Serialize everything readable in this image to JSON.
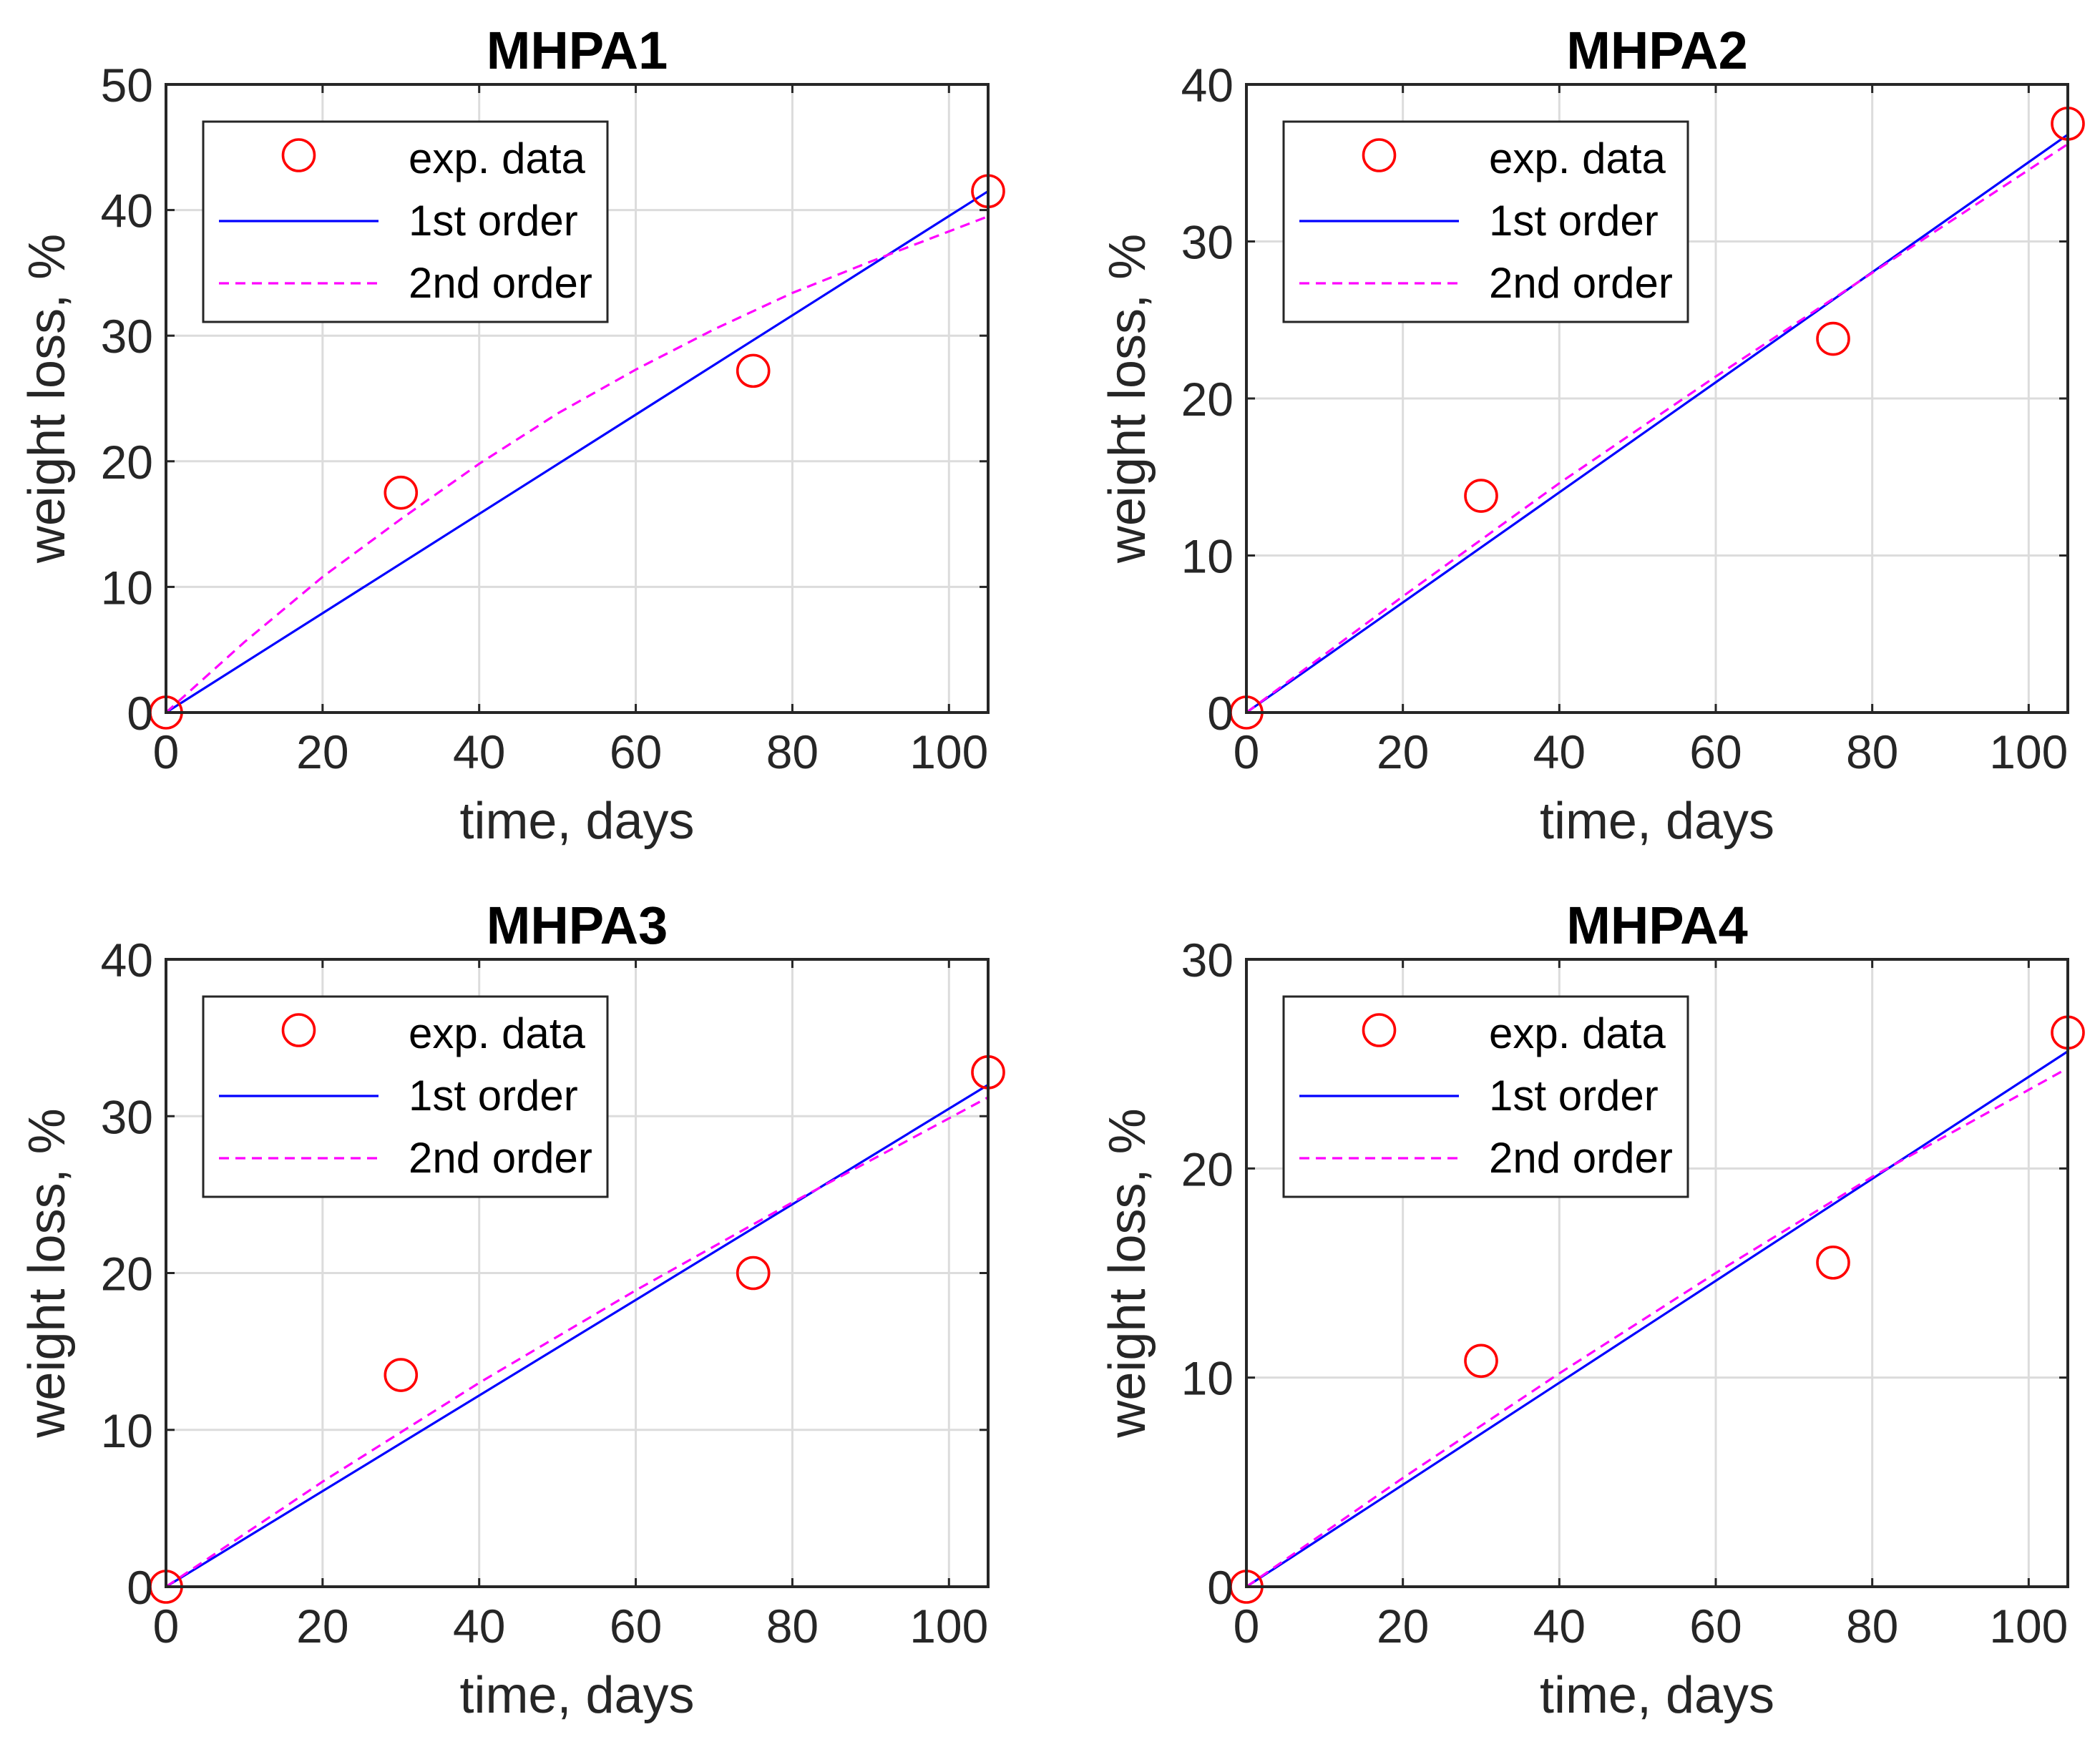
{
  "chart_data": [
    {
      "type": "line",
      "title": "MHPA1",
      "xlabel": "time, days",
      "ylabel": "weight loss, %",
      "xlim": [
        0,
        105
      ],
      "ylim": [
        0,
        50
      ],
      "xticks": [
        0,
        20,
        40,
        60,
        80,
        100
      ],
      "yticks": [
        0,
        10,
        20,
        30,
        40,
        50
      ],
      "grid": true,
      "legend_position": "top-left",
      "series": [
        {
          "name": "exp. data",
          "kind": "markers",
          "marker": "circle",
          "color": "#ff0000",
          "x": [
            0,
            30,
            75,
            105
          ],
          "y": [
            0,
            17.5,
            27.2,
            41.5
          ]
        },
        {
          "name": "1st order",
          "kind": "line",
          "style": "solid",
          "color": "#0000ff",
          "x": [
            0,
            105
          ],
          "y": [
            0,
            41.5
          ]
        },
        {
          "name": "2nd order",
          "kind": "line",
          "style": "dashed",
          "color": "#ff00ff",
          "x": [
            0,
            10,
            20,
            30,
            40,
            50,
            60,
            70,
            80,
            90,
            105
          ],
          "y": [
            0,
            5.6,
            10.8,
            15.4,
            19.8,
            23.8,
            27.3,
            30.5,
            33.4,
            35.9,
            39.5
          ]
        }
      ]
    },
    {
      "type": "line",
      "title": "MHPA2",
      "xlabel": "time, days",
      "ylabel": "weight loss, %",
      "xlim": [
        0,
        105
      ],
      "ylim": [
        0,
        40
      ],
      "xticks": [
        0,
        20,
        40,
        60,
        80,
        100
      ],
      "yticks": [
        0,
        10,
        20,
        30,
        40
      ],
      "grid": true,
      "legend_position": "top-left",
      "series": [
        {
          "name": "exp. data",
          "kind": "markers",
          "marker": "circle",
          "color": "#ff0000",
          "x": [
            0,
            30,
            75,
            105
          ],
          "y": [
            0,
            13.8,
            23.8,
            37.5
          ]
        },
        {
          "name": "1st order",
          "kind": "line",
          "style": "solid",
          "color": "#0000ff",
          "x": [
            0,
            105
          ],
          "y": [
            0,
            36.8
          ]
        },
        {
          "name": "2nd order",
          "kind": "line",
          "style": "dashed",
          "color": "#ff00ff",
          "x": [
            0,
            20,
            40,
            60,
            80,
            105
          ],
          "y": [
            0,
            7.4,
            14.6,
            21.4,
            28.0,
            36.2
          ]
        }
      ]
    },
    {
      "type": "line",
      "title": "MHPA3",
      "xlabel": "time, days",
      "ylabel": "weight loss, %",
      "xlim": [
        0,
        105
      ],
      "ylim": [
        0,
        40
      ],
      "xticks": [
        0,
        20,
        40,
        60,
        80,
        100
      ],
      "yticks": [
        0,
        10,
        20,
        30,
        40
      ],
      "grid": true,
      "legend_position": "top-left",
      "series": [
        {
          "name": "exp. data",
          "kind": "markers",
          "marker": "circle",
          "color": "#ff0000",
          "x": [
            0,
            30,
            75,
            105
          ],
          "y": [
            0,
            13.5,
            20,
            32.8
          ]
        },
        {
          "name": "1st order",
          "kind": "line",
          "style": "solid",
          "color": "#0000ff",
          "x": [
            0,
            105
          ],
          "y": [
            0,
            32.0
          ]
        },
        {
          "name": "2nd order",
          "kind": "line",
          "style": "dashed",
          "color": "#ff00ff",
          "x": [
            0,
            20,
            40,
            60,
            80,
            105
          ],
          "y": [
            0,
            6.7,
            13.0,
            18.9,
            24.5,
            31.2
          ]
        }
      ]
    },
    {
      "type": "line",
      "title": "MHPA4",
      "xlabel": "time, days",
      "ylabel": "weight loss, %",
      "xlim": [
        0,
        105
      ],
      "ylim": [
        0,
        30
      ],
      "xticks": [
        0,
        20,
        40,
        60,
        80,
        100
      ],
      "yticks": [
        0,
        10,
        20,
        30
      ],
      "grid": true,
      "legend_position": "top-left",
      "series": [
        {
          "name": "exp. data",
          "kind": "markers",
          "marker": "circle",
          "color": "#ff0000",
          "x": [
            0,
            30,
            75,
            105
          ],
          "y": [
            0,
            10.8,
            15.5,
            26.5
          ]
        },
        {
          "name": "1st order",
          "kind": "line",
          "style": "solid",
          "color": "#0000ff",
          "x": [
            0,
            105
          ],
          "y": [
            0,
            25.6
          ]
        },
        {
          "name": "2nd order",
          "kind": "line",
          "style": "dashed",
          "color": "#ff00ff",
          "x": [
            0,
            20,
            40,
            60,
            80,
            105
          ],
          "y": [
            0,
            5.2,
            10.2,
            15.0,
            19.6,
            24.8
          ]
        }
      ]
    }
  ]
}
